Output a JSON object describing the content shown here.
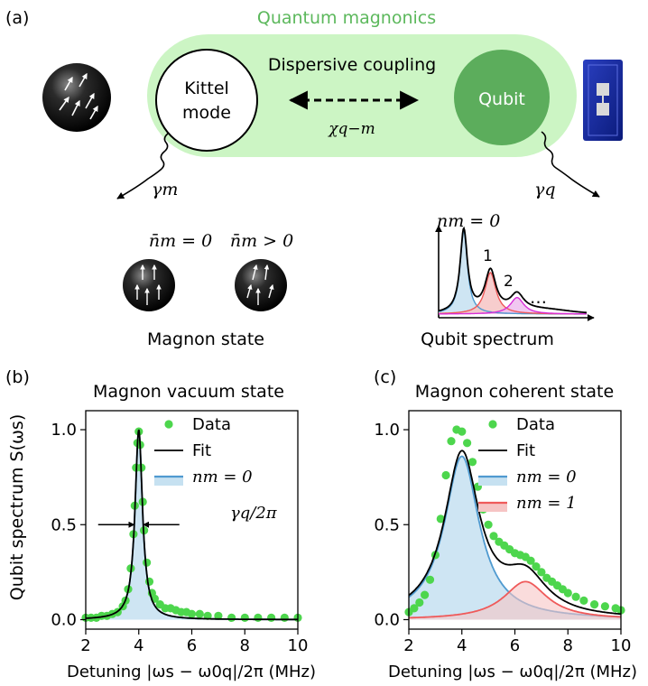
{
  "colors": {
    "light_green": "#ccf5c4",
    "qubit_green": "#5cad5c",
    "data_green": "#4dd64d",
    "fit_black": "#000000",
    "n0_blue": "#4f9ad0",
    "n0_fill": "#c6e1f1",
    "n1_red": "#ef5a5a",
    "n1_fill": "#f6c4c4",
    "n2_magenta": "#d82fd8"
  },
  "panel_a": {
    "label": "(a)",
    "title": "Quantum magnonics",
    "coupling_label": "Dispersive coupling",
    "kittel_label_1": "Kittel",
    "kittel_label_2": "mode",
    "qubit_label": "Qubit",
    "chi_label": "χq−m",
    "gamma_m": "γm",
    "gamma_q": "γq",
    "nbar_zero": "n̄m = 0",
    "nbar_pos": "n̄m > 0",
    "magnon_state": "Magnon state",
    "qubit_spectrum": "Qubit spectrum",
    "nm_zero": "nm = 0",
    "peak_1": "1",
    "peak_2": "2",
    "ellipsis": "…"
  },
  "panel_b": {
    "label": "(b)"
  },
  "panel_c": {
    "label": "(c)"
  },
  "shared": {
    "ylabel": "Qubit spectrum S(ωs)"
  },
  "chart_data": [
    {
      "type": "line",
      "title": "Magnon vacuum state",
      "xlabel": "Detuning |ωs − ω0q|/2π (MHz)",
      "ylabel": "Qubit spectrum S(ωs)",
      "xlim": [
        2,
        10
      ],
      "ylim": [
        -0.05,
        1.1
      ],
      "xticks": [
        2,
        4,
        6,
        8,
        10
      ],
      "yticks": [
        0.0,
        0.5,
        1.0
      ],
      "ytick_labels": [
        "0.0",
        "0.5",
        "1.0"
      ],
      "legend": [
        "Data",
        "Fit",
        "nm = 0"
      ],
      "legend_position": "upper right",
      "annotation": "γq/2π",
      "series": [
        {
          "name": "Data",
          "kind": "scatter",
          "x": [
            2.0,
            2.2,
            2.4,
            2.6,
            2.8,
            3.0,
            3.2,
            3.4,
            3.5,
            3.6,
            3.7,
            3.8,
            3.85,
            3.9,
            3.95,
            4.0,
            4.05,
            4.1,
            4.15,
            4.2,
            4.3,
            4.4,
            4.5,
            4.6,
            4.8,
            5.0,
            5.2,
            5.4,
            5.6,
            5.8,
            6.0,
            6.3,
            6.6,
            7.0,
            7.5,
            8.0,
            8.5,
            9.0,
            9.5,
            10.0
          ],
          "y": [
            0.01,
            0.01,
            0.01,
            0.02,
            0.02,
            0.03,
            0.04,
            0.07,
            0.1,
            0.16,
            0.27,
            0.45,
            0.6,
            0.8,
            0.93,
            0.99,
            0.92,
            0.8,
            0.62,
            0.47,
            0.3,
            0.2,
            0.14,
            0.11,
            0.08,
            0.06,
            0.06,
            0.05,
            0.04,
            0.04,
            0.03,
            0.03,
            0.02,
            0.02,
            0.01,
            0.01,
            0.01,
            0.01,
            0.01,
            0.01
          ]
        },
        {
          "name": "Fit",
          "kind": "lorentzian",
          "center": 4.0,
          "hwhm": 0.17,
          "amplitude": 1.0
        },
        {
          "name": "nm = 0",
          "kind": "lorentzian",
          "center": 4.0,
          "hwhm": 0.17,
          "amplitude": 1.0
        }
      ]
    },
    {
      "type": "line",
      "title": "Magnon coherent state",
      "xlabel": "Detuning |ωs − ω0q|/2π (MHz)",
      "xlim": [
        2,
        10
      ],
      "ylim": [
        -0.05,
        1.1
      ],
      "xticks": [
        2,
        4,
        6,
        8,
        10
      ],
      "yticks": [
        0.0,
        0.5,
        1.0
      ],
      "ytick_labels": [
        "0.0",
        "0.5",
        "1.0"
      ],
      "legend": [
        "Data",
        "Fit",
        "nm = 0",
        "nm = 1"
      ],
      "legend_position": "upper right",
      "series": [
        {
          "name": "Data",
          "kind": "scatter",
          "x": [
            2.0,
            2.2,
            2.4,
            2.6,
            2.8,
            3.0,
            3.2,
            3.4,
            3.6,
            3.8,
            4.0,
            4.2,
            4.4,
            4.6,
            4.8,
            5.0,
            5.2,
            5.4,
            5.6,
            5.8,
            6.0,
            6.2,
            6.4,
            6.6,
            6.8,
            7.0,
            7.2,
            7.4,
            7.6,
            7.8,
            8.0,
            8.3,
            8.6,
            9.0,
            9.4,
            9.8,
            10.0
          ],
          "y": [
            0.04,
            0.06,
            0.09,
            0.13,
            0.21,
            0.34,
            0.53,
            0.76,
            0.94,
            1.0,
            0.99,
            0.93,
            0.83,
            0.7,
            0.58,
            0.5,
            0.44,
            0.41,
            0.39,
            0.37,
            0.35,
            0.34,
            0.33,
            0.31,
            0.28,
            0.25,
            0.22,
            0.2,
            0.18,
            0.16,
            0.14,
            0.12,
            0.1,
            0.08,
            0.07,
            0.06,
            0.05
          ]
        },
        {
          "name": "Fit",
          "kind": "sum"
        },
        {
          "name": "nm = 0",
          "kind": "lorentzian",
          "center": 4.0,
          "hwhm": 0.8,
          "amplitude": 0.86
        },
        {
          "name": "nm = 1",
          "kind": "lorentzian",
          "center": 6.4,
          "hwhm": 1.0,
          "amplitude": 0.2
        }
      ]
    }
  ]
}
